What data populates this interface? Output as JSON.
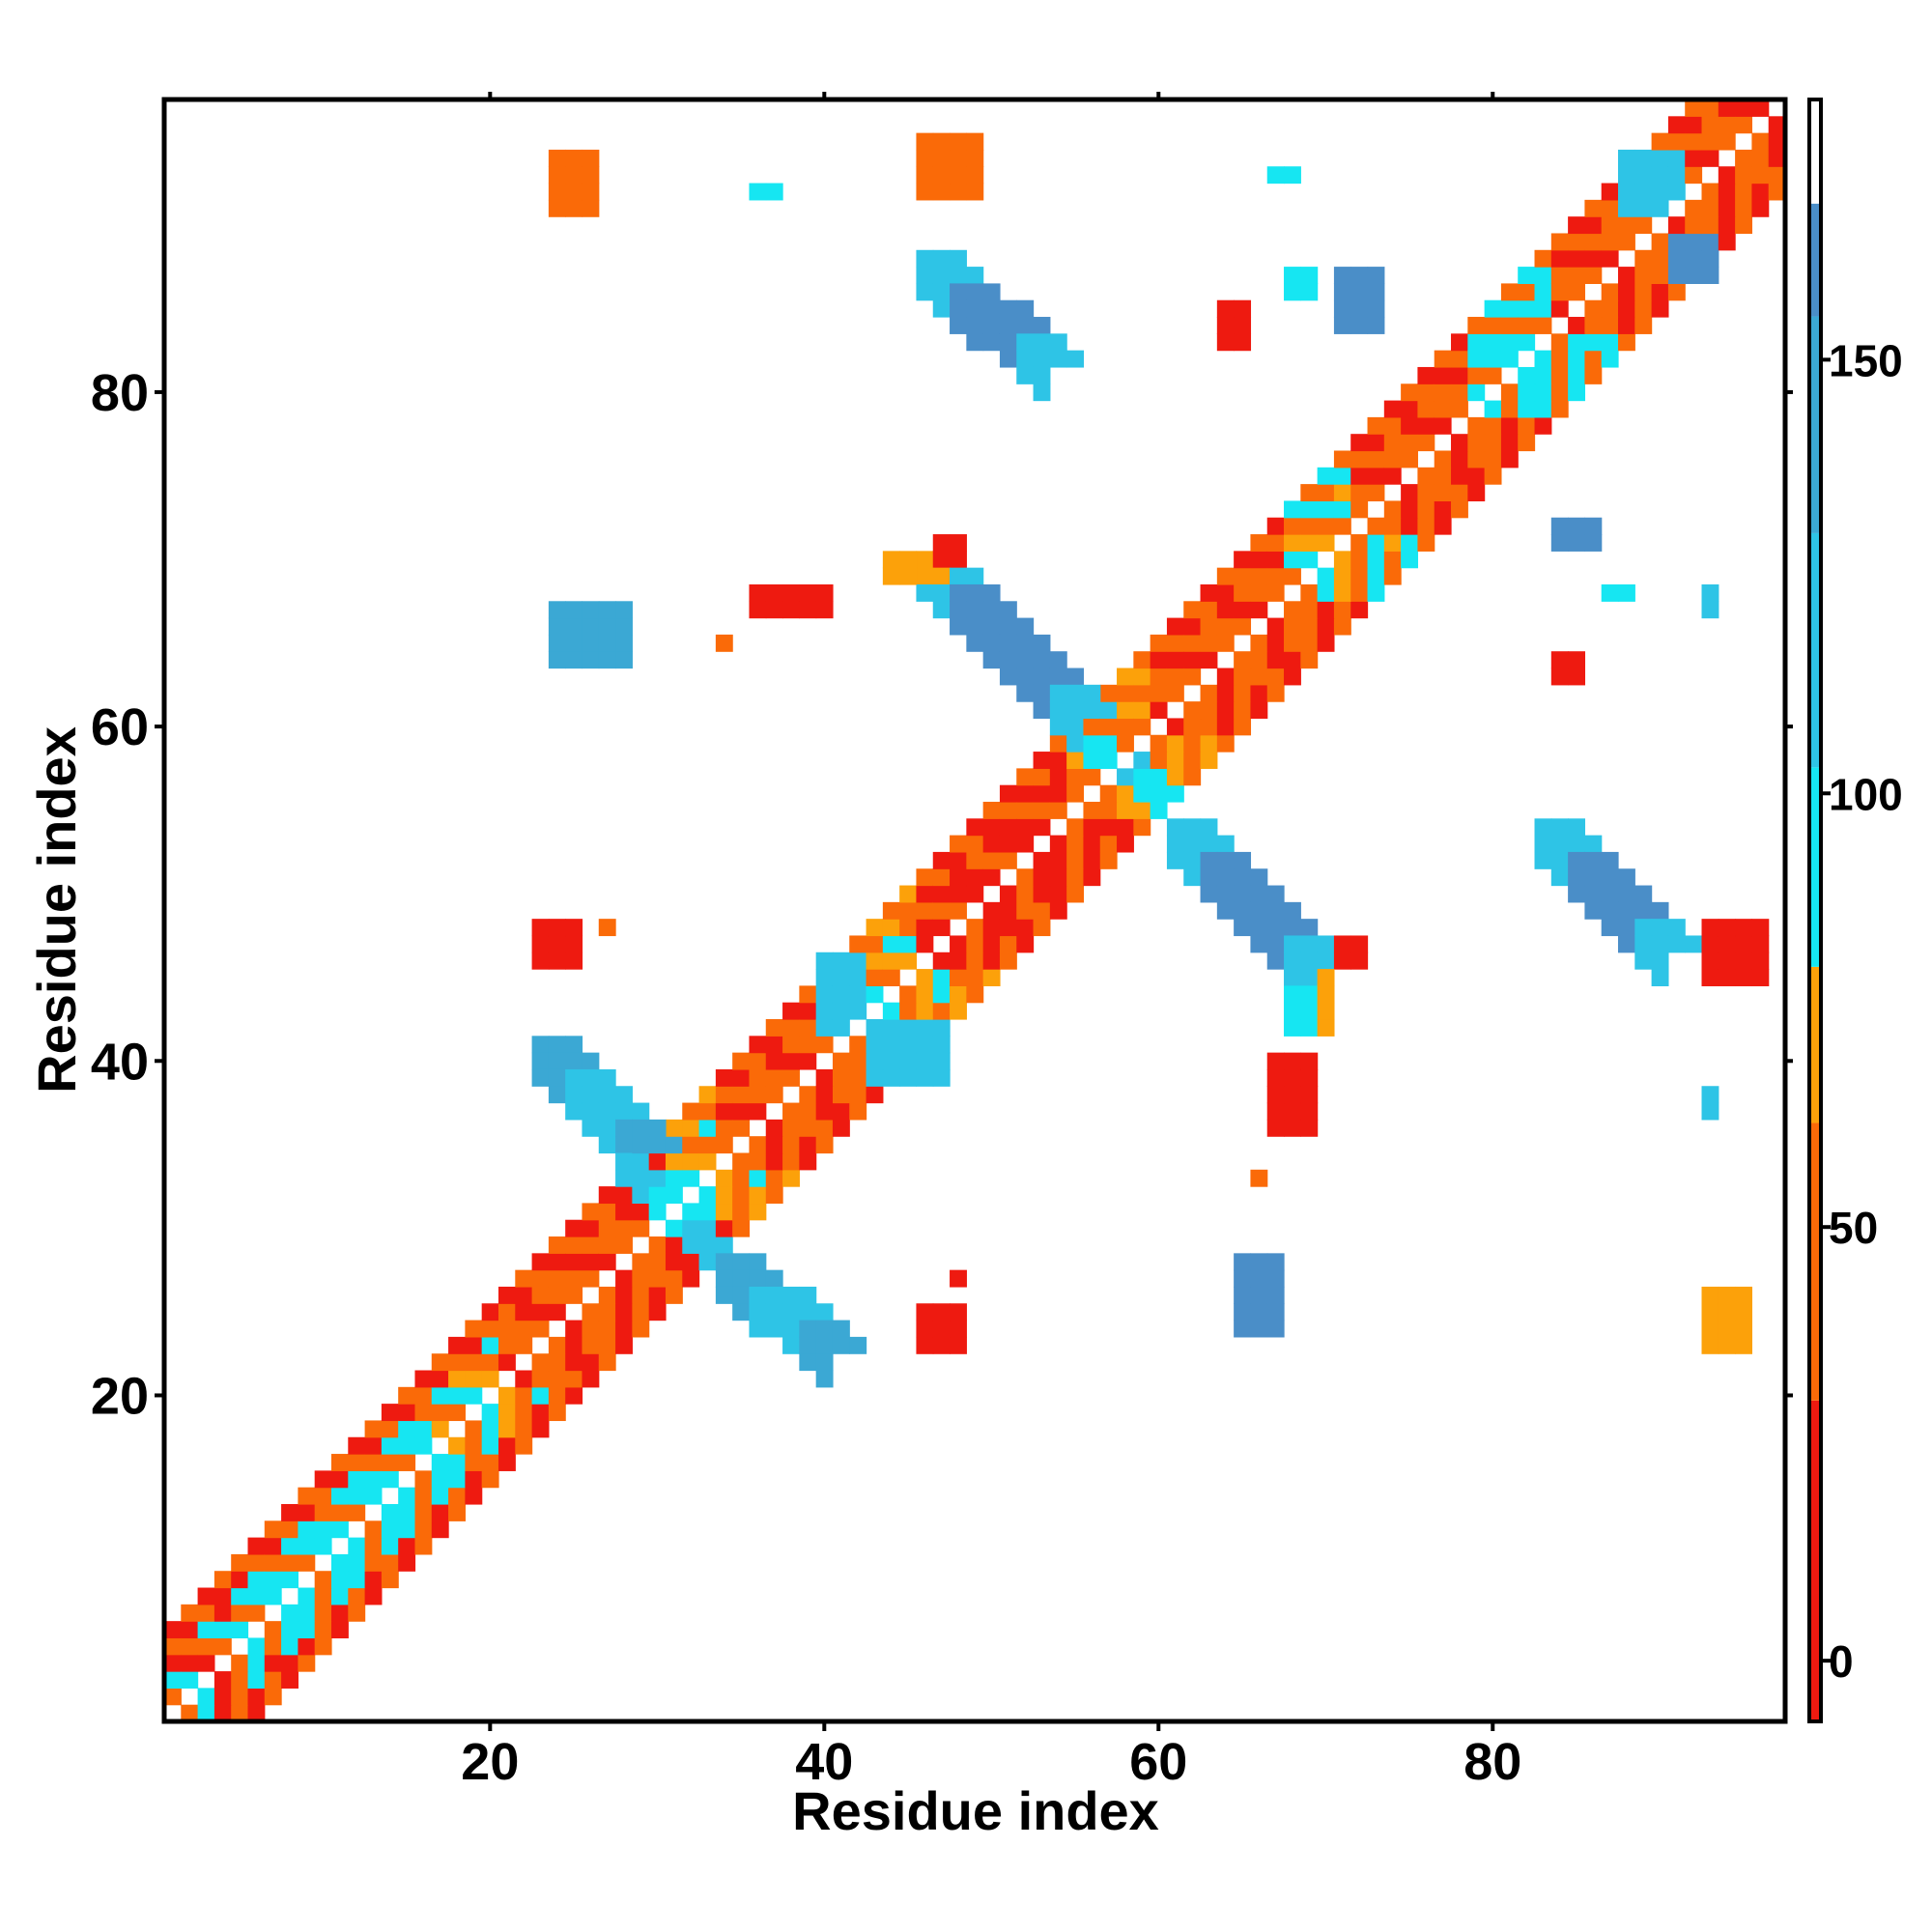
{
  "chart_data": {
    "type": "heatmap",
    "title": "",
    "xlabel": "Residue index",
    "ylabel": "Residue index",
    "xlim": [
      0.5,
      97.5
    ],
    "ylim": [
      0.5,
      97.5
    ],
    "x_ticks": [
      20,
      40,
      60,
      80
    ],
    "y_ticks": [
      20,
      40,
      60,
      80
    ],
    "colorbar": {
      "ticks": [
        0,
        50,
        100,
        150
      ],
      "range": [
        -7,
        180
      ],
      "bands": [
        {
          "from": -7,
          "to": 30,
          "color": "#ee1a10"
        },
        {
          "from": 30,
          "to": 62,
          "color": "#fa6a08"
        },
        {
          "from": 62,
          "to": 80,
          "color": "#fca10a"
        },
        {
          "from": 80,
          "to": 103,
          "color": "#16e6f2"
        },
        {
          "from": 103,
          "to": 130,
          "color": "#2ec4e6"
        },
        {
          "from": 130,
          "to": 155,
          "color": "#3ba8d4"
        },
        {
          "from": 155,
          "to": 168,
          "color": "#4a8ec8"
        },
        {
          "from": 168,
          "to": 180,
          "color": "#ffffff"
        }
      ]
    },
    "color_key": {
      "R": "#ee1a10",
      "O": "#fa6a08",
      "Y": "#fca10a",
      "C": "#16e6f2",
      "L": "#2ec4e6",
      "M": "#3ba8d4",
      "B": "#4a8ec8"
    },
    "value_key": {
      "R": 10,
      "O": 45,
      "Y": 70,
      "C": 90,
      "L": 115,
      "M": 140,
      "B": 160
    },
    "diagonal": [
      {
        "from": 1,
        "to": 5,
        "d1": "CRO",
        "d2": "RO"
      },
      {
        "from": 5,
        "to": 17,
        "d1": "COC",
        "d2": "OR"
      },
      {
        "from": 17,
        "to": 21,
        "d1": "YOC",
        "d2": "OR"
      },
      {
        "from": 21,
        "to": 31,
        "d1": "ORO",
        "d2": "RO"
      },
      {
        "from": 31,
        "to": 34,
        "d1": "CYO",
        "d2": "YO"
      },
      {
        "from": 34,
        "to": 41,
        "d1": "ORO",
        "d2": "OR"
      },
      {
        "from": 41,
        "to": 46,
        "d1": "OYC",
        "d2": "YO"
      },
      {
        "from": 46,
        "to": 55,
        "d1": "ROR",
        "d2": "RO"
      },
      {
        "from": 55,
        "to": 60,
        "d1": "OYO",
        "d2": "OY"
      },
      {
        "from": 60,
        "to": 68,
        "d1": "ORO",
        "d2": "RO"
      },
      {
        "from": 68,
        "to": 72,
        "d1": "OCY",
        "d2": "OC"
      },
      {
        "from": 72,
        "to": 79,
        "d1": "ROO",
        "d2": "OR"
      },
      {
        "from": 79,
        "to": 84,
        "d1": "OCC",
        "d2": "OC"
      },
      {
        "from": 84,
        "to": 97,
        "d1": "ORO",
        "d2": "RO"
      }
    ],
    "blocks": [
      {
        "x": [
          24,
          26
        ],
        "y": [
          91,
          94
        ],
        "c": "O"
      },
      {
        "x": [
          36,
          37
        ],
        "y": [
          92,
          92
        ],
        "c": "C"
      },
      {
        "x": [
          46,
          49
        ],
        "y": [
          92,
          95
        ],
        "c": "O"
      },
      {
        "x": [
          67,
          68
        ],
        "y": [
          93,
          93
        ],
        "c": "C"
      },
      {
        "x": [
          68,
          69
        ],
        "y": [
          86,
          87
        ],
        "c": "C"
      },
      {
        "x": [
          71,
          73
        ],
        "y": [
          84,
          87
        ],
        "c": "B"
      },
      {
        "x": [
          64,
          65
        ],
        "y": [
          83,
          85
        ],
        "c": "R"
      },
      {
        "x": [
          84,
          86
        ],
        "y": [
          71,
          72
        ],
        "c": "B"
      },
      {
        "x": [
          87,
          88
        ],
        "y": [
          68,
          68
        ],
        "c": "C"
      },
      {
        "x": [
          93,
          93
        ],
        "y": [
          67,
          68
        ],
        "c": "L"
      },
      {
        "x": [
          84,
          85
        ],
        "y": [
          63,
          64
        ],
        "c": "R"
      },
      {
        "x": [
          44,
          47
        ],
        "y": [
          69,
          70
        ],
        "c": "Y"
      },
      {
        "x": [
          47,
          48
        ],
        "y": [
          70,
          71
        ],
        "c": "R"
      },
      {
        "x": [
          36,
          40
        ],
        "y": [
          67,
          68
        ],
        "c": "R"
      },
      {
        "x": [
          34,
          34
        ],
        "y": [
          65,
          65
        ],
        "c": "O"
      },
      {
        "x": [
          24,
          28
        ],
        "y": [
          64,
          67
        ],
        "c": "M"
      },
      {
        "x": [
          23,
          25
        ],
        "y": [
          46,
          48
        ],
        "c": "R"
      },
      {
        "x": [
          27,
          27
        ],
        "y": [
          48,
          48
        ],
        "c": "O"
      },
      {
        "x": [
          40,
          42
        ],
        "y": [
          42,
          46
        ],
        "c": "L"
      },
      {
        "x": [
          43,
          47
        ],
        "y": [
          39,
          42
        ],
        "c": "L"
      },
      {
        "x": [
          67,
          69
        ],
        "y": [
          36,
          40
        ],
        "c": "R"
      },
      {
        "x": [
          66,
          66
        ],
        "y": [
          33,
          33
        ],
        "c": "O"
      },
      {
        "x": [
          65,
          67
        ],
        "y": [
          24,
          28
        ],
        "c": "B"
      },
      {
        "x": [
          48,
          48
        ],
        "y": [
          27,
          27
        ],
        "c": "R"
      },
      {
        "x": [
          46,
          48
        ],
        "y": [
          23,
          25
        ],
        "c": "R"
      },
      {
        "x": [
          93,
          95
        ],
        "y": [
          23,
          26
        ],
        "c": "Y"
      },
      {
        "x": [
          93,
          93
        ],
        "y": [
          37,
          38
        ],
        "c": "L"
      },
      {
        "x": [
          93,
          96
        ],
        "y": [
          45,
          48
        ],
        "c": "R"
      },
      {
        "x": [
          68,
          69
        ],
        "y": [
          42,
          44
        ],
        "c": "C"
      },
      {
        "x": [
          70,
          70
        ],
        "y": [
          42,
          45
        ],
        "c": "Y"
      },
      {
        "x": [
          71,
          72
        ],
        "y": [
          46,
          47
        ],
        "c": "R"
      },
      {
        "x": [
          88,
          91
        ],
        "y": [
          91,
          94
        ],
        "c": "L"
      },
      {
        "x": [
          91,
          93
        ],
        "y": [
          87,
          89
        ],
        "c": "B"
      }
    ],
    "bands": [
      {
        "x0": 46,
        "y0": 88,
        "x1": 53,
        "y1": 82,
        "w": 3,
        "c": "B",
        "c2": "L"
      },
      {
        "x0": 46,
        "y0": 70,
        "x1": 55,
        "y1": 61,
        "w": 3,
        "c": "B",
        "c2": "L"
      },
      {
        "x0": 23,
        "y0": 41,
        "x1": 29,
        "y1": 35,
        "w": 3,
        "c": "L",
        "c2": "M"
      },
      {
        "x0": 61,
        "y0": 54,
        "x1": 69,
        "y1": 46,
        "w": 3,
        "c": "B",
        "c2": "L"
      },
      {
        "x0": 83,
        "y0": 54,
        "x1": 90,
        "y1": 47,
        "w": 3,
        "c": "B",
        "c2": "L"
      },
      {
        "x0": 34,
        "y0": 28,
        "x1": 40,
        "y1": 23,
        "w": 3,
        "c": "L",
        "c2": "M"
      },
      {
        "x0": 56,
        "y0": 59,
        "x1": 60,
        "y1": 56,
        "w": 2,
        "c": "L",
        "c2": "C"
      },
      {
        "x0": 28,
        "y0": 34,
        "x1": 33,
        "y1": 29,
        "w": 2,
        "c": "C",
        "c2": "L"
      }
    ]
  }
}
